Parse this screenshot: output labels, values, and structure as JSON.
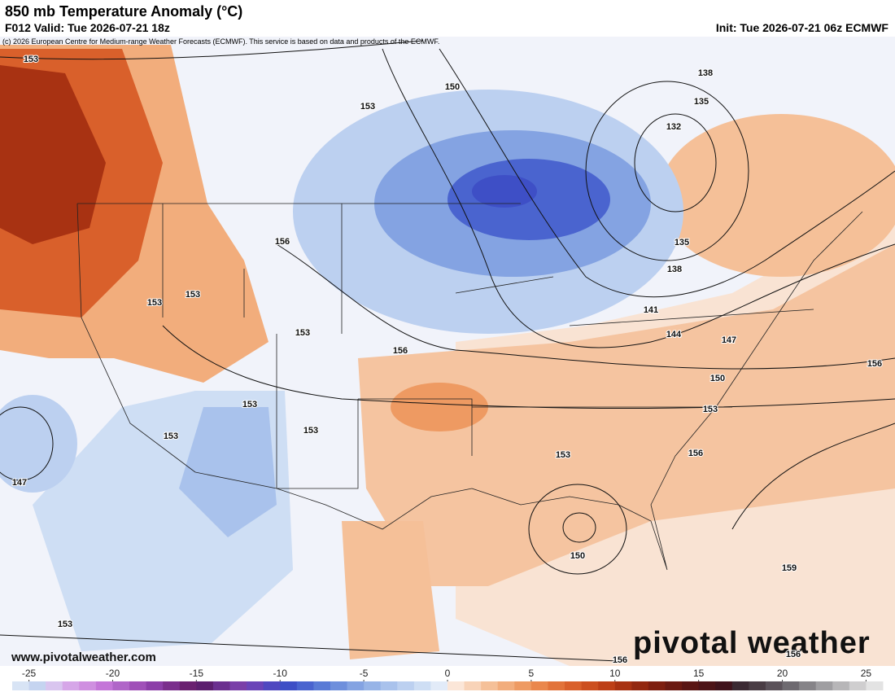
{
  "header": {
    "title": "850 mb Temperature Anomaly (°C)",
    "valid": "F012 Valid: Tue 2026-07-21 18z",
    "init": "Init: Tue 2026-07-21 06z ECMWF",
    "copyright": "(c) 2026 European Centre for Medium-range Weather Forecasts (ECMWF). This service is based on data and products of the ECMWF."
  },
  "map": {
    "contour_labels": [
      153,
      150,
      153,
      138,
      135,
      132,
      135,
      138,
      156,
      153,
      153,
      153,
      141,
      144,
      147,
      156,
      150,
      153,
      153,
      153,
      153,
      156,
      153,
      156,
      147,
      150,
      159,
      153,
      156,
      156
    ]
  },
  "website": "www.pivotalweather.com",
  "logo": "pivotal weather",
  "colorbar": {
    "lim": [
      -26,
      26
    ],
    "ticks": [
      -25,
      -20,
      -15,
      -10,
      -5,
      0,
      5,
      10,
      15,
      20,
      25
    ],
    "colors": [
      "#d8e4f5",
      "#c5d4f0",
      "#d9c5ef",
      "#d6a6e8",
      "#cf8fe0",
      "#c476d8",
      "#b066c8",
      "#a050b8",
      "#8c3ea8",
      "#7a2e8c",
      "#6a2070",
      "#5c1e6e",
      "#6b2f8f",
      "#7a3fa8",
      "#6a44b8",
      "#4f48c0",
      "#3e4fc6",
      "#4a64cf",
      "#5a7bd6",
      "#6e8fdc",
      "#84a3e2",
      "#97b4e7",
      "#a9c2ec",
      "#bcd0f0",
      "#cedef4",
      "#e2ebf8",
      "#fbe6d8",
      "#f8d3b8",
      "#f5c098",
      "#f2ad7c",
      "#ee9a62",
      "#ea874c",
      "#e2733a",
      "#d9602b",
      "#cc4f1f",
      "#bd3f17",
      "#a83212",
      "#932810",
      "#7e1f10",
      "#6b1a12",
      "#5a1614",
      "#4d1418",
      "#40131c",
      "#3b2a33",
      "#4a3d45",
      "#5b525a",
      "#6e6a70",
      "#868488",
      "#9f9ea1",
      "#b7b6b8",
      "#cfcecf",
      "#e3e3e3"
    ]
  }
}
